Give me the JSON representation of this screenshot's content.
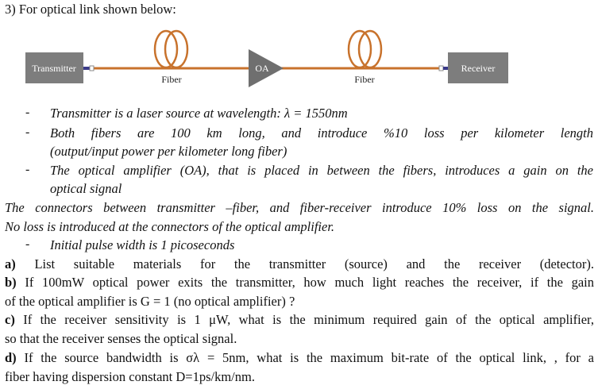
{
  "heading": "3) For optical link shown below:",
  "diagram": {
    "transmitter": "Transmitter",
    "receiver": "Receiver",
    "amplifier": "OA",
    "fiber1": "Fiber",
    "fiber2": "Fiber",
    "fiber_color": "#c8722c",
    "box_color": "#7d7d7d"
  },
  "bullets": {
    "b1": "Transmitter is a laser source at wavelength: λ = 1550nm",
    "b2a": "Both fibers are 100 km long, and introduce %10 loss per kilometer length",
    "b2b": "(output/input power per kilometer long fiber)",
    "b3a": "The optical amplifier (OA), that is placed in between the fibers, introduces a gain on the",
    "b3b": "optical signal",
    "b4": "Initial pulse width is 1 picoseconds",
    "dash": "-"
  },
  "connectors": {
    "l1": "The connectors between transmitter –fiber, and fiber-receiver introduce 10% loss on the signal.",
    "l2": "No loss is introduced at the connectors of the optical amplifier."
  },
  "questions": {
    "a": {
      "label": "a)",
      "l1": "List suitable materials for the transmitter (source) and the receiver (detector)."
    },
    "b": {
      "label": "b)",
      "l1": "If 100mW optical power exits the transmitter, how much light reaches the receiver, if the gain",
      "l2": "of the optical amplifier is G = 1 (no optical amplifier) ?"
    },
    "c": {
      "label": "c)",
      "l1": "If the receiver sensitivity is 1 μW, what is the minimum required gain of the optical amplifier,",
      "l2": "so that the receiver senses the optical signal."
    },
    "d": {
      "label": "d)",
      "l1": "If the source bandwidth is σλ = 5nm, what is the maximum bit-rate of the optical link, , for a",
      "l2": "fiber having dispersion constant D=1ps/km/nm."
    }
  }
}
